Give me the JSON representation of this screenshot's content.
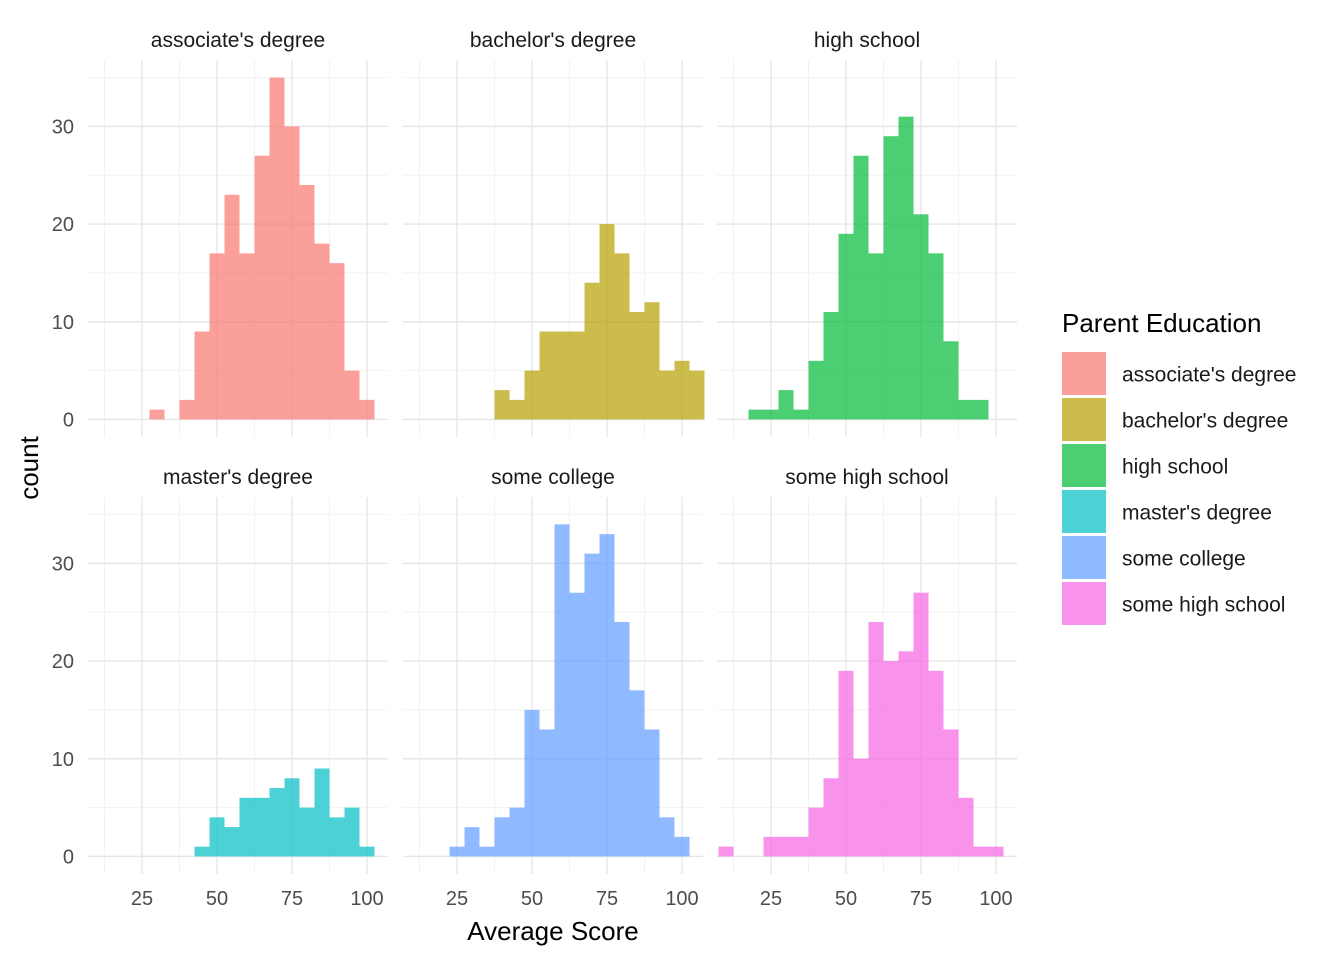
{
  "chart_data": {
    "type": "bar",
    "subtype": "faceted-histogram",
    "xlabel": "Average Score",
    "ylabel": "count",
    "x_ticks": [
      25,
      50,
      75,
      100
    ],
    "y_ticks": [
      0,
      10,
      20,
      30
    ],
    "xlim": [
      7,
      107
    ],
    "ylim": [
      -1.8,
      36.8
    ],
    "bin_width": 5,
    "grid": true,
    "legend": {
      "title": "Parent Education",
      "placement": "right",
      "entries": [
        {
          "label": "associate's degree",
          "color": "#F8766D"
        },
        {
          "label": "bachelor's degree",
          "color": "#B79F00"
        },
        {
          "label": "high school",
          "color": "#00BA38"
        },
        {
          "label": "master's degree",
          "color": "#00BFC4"
        },
        {
          "label": "some college",
          "color": "#619CFF"
        },
        {
          "label": "some high school",
          "color": "#F564E3"
        }
      ]
    },
    "facets": [
      {
        "name": "associate's degree",
        "color": "#F8766D",
        "bins": [
          [
            30,
            1
          ],
          [
            35,
            0
          ],
          [
            40,
            2
          ],
          [
            45,
            9
          ],
          [
            50,
            17
          ],
          [
            55,
            23
          ],
          [
            60,
            17
          ],
          [
            65,
            27
          ],
          [
            70,
            35
          ],
          [
            75,
            30
          ],
          [
            80,
            24
          ],
          [
            85,
            18
          ],
          [
            90,
            16
          ],
          [
            95,
            5
          ],
          [
            100,
            2
          ]
        ]
      },
      {
        "name": "bachelor's degree",
        "color": "#B79F00",
        "bins": [
          [
            40,
            3
          ],
          [
            45,
            2
          ],
          [
            50,
            5
          ],
          [
            55,
            9
          ],
          [
            60,
            9
          ],
          [
            65,
            9
          ],
          [
            70,
            14
          ],
          [
            75,
            20
          ],
          [
            80,
            17
          ],
          [
            85,
            11
          ],
          [
            90,
            12
          ],
          [
            95,
            5
          ],
          [
            100,
            6
          ],
          [
            105,
            5
          ]
        ]
      },
      {
        "name": "high school",
        "color": "#00BA38",
        "bins": [
          [
            20,
            1
          ],
          [
            25,
            1
          ],
          [
            30,
            3
          ],
          [
            35,
            1
          ],
          [
            40,
            6
          ],
          [
            45,
            11
          ],
          [
            50,
            19
          ],
          [
            55,
            27
          ],
          [
            60,
            17
          ],
          [
            65,
            29
          ],
          [
            70,
            31
          ],
          [
            75,
            21
          ],
          [
            80,
            17
          ],
          [
            85,
            8
          ],
          [
            90,
            2
          ],
          [
            95,
            2
          ]
        ]
      },
      {
        "name": "master's degree",
        "color": "#00BFC4",
        "bins": [
          [
            45,
            1
          ],
          [
            50,
            4
          ],
          [
            55,
            3
          ],
          [
            60,
            6
          ],
          [
            65,
            6
          ],
          [
            70,
            7
          ],
          [
            75,
            8
          ],
          [
            80,
            5
          ],
          [
            85,
            9
          ],
          [
            90,
            4
          ],
          [
            95,
            5
          ],
          [
            100,
            1
          ]
        ]
      },
      {
        "name": "some college",
        "color": "#619CFF",
        "bins": [
          [
            25,
            1
          ],
          [
            30,
            3
          ],
          [
            35,
            1
          ],
          [
            40,
            4
          ],
          [
            45,
            5
          ],
          [
            50,
            15
          ],
          [
            55,
            13
          ],
          [
            60,
            34
          ],
          [
            65,
            27
          ],
          [
            70,
            31
          ],
          [
            75,
            33
          ],
          [
            80,
            24
          ],
          [
            85,
            17
          ],
          [
            90,
            13
          ],
          [
            95,
            4
          ],
          [
            100,
            2
          ]
        ]
      },
      {
        "name": "some high school",
        "color": "#F564E3",
        "bins": [
          [
            10,
            1
          ],
          [
            15,
            0
          ],
          [
            20,
            0
          ],
          [
            25,
            2
          ],
          [
            30,
            2
          ],
          [
            35,
            2
          ],
          [
            40,
            5
          ],
          [
            45,
            8
          ],
          [
            50,
            19
          ],
          [
            55,
            10
          ],
          [
            60,
            24
          ],
          [
            65,
            20
          ],
          [
            70,
            21
          ],
          [
            75,
            27
          ],
          [
            80,
            19
          ],
          [
            85,
            13
          ],
          [
            90,
            6
          ],
          [
            95,
            1
          ],
          [
            100,
            1
          ]
        ]
      }
    ]
  }
}
